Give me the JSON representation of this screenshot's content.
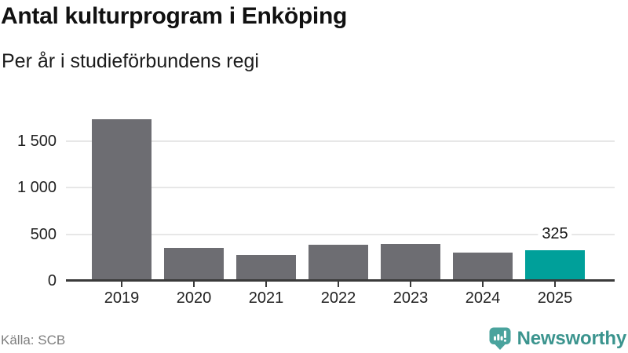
{
  "chart_data": {
    "type": "bar",
    "title": "Antal kulturprogram i Enköping",
    "subtitle": "Per år i studieförbundens regi",
    "categories": [
      "2019",
      "2020",
      "2021",
      "2022",
      "2023",
      "2024",
      "2025"
    ],
    "values": [
      1740,
      350,
      275,
      385,
      395,
      305,
      325
    ],
    "highlight": {
      "index": 6,
      "category": "2025",
      "label": "325"
    },
    "xlabel": "",
    "ylabel": "",
    "ylim": [
      0,
      1760
    ],
    "yticks": [
      {
        "value": 0,
        "label": "0"
      },
      {
        "value": 500,
        "label": "500"
      },
      {
        "value": 1000,
        "label": "1 000"
      },
      {
        "value": 1500,
        "label": "1 500"
      }
    ],
    "grid": true,
    "legend_position": "none",
    "colors": {
      "bar": "#6d6d72",
      "highlight": "#00a09a",
      "grid": "#e7e7e7",
      "axis": "#3a3a3a"
    }
  },
  "footer": {
    "source": "Källa: SCB",
    "brand": "Newsworthy",
    "brand_color": "#3b948e",
    "badge_color": "#4aa39d"
  }
}
